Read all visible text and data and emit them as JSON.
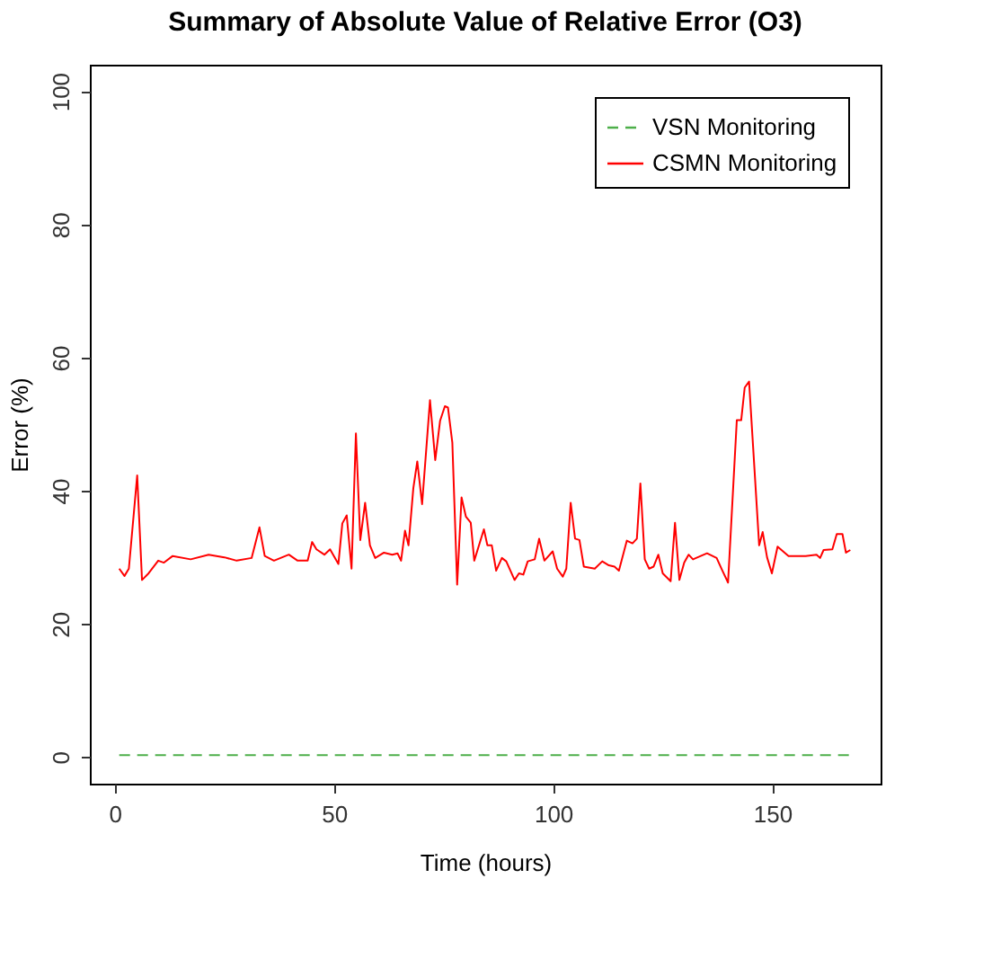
{
  "chart_data": {
    "type": "line",
    "title": "Summary of Absolute Value of Relative Error (O3)",
    "xlabel": "Time (hours)",
    "ylabel": "Error (%)",
    "xlim": [
      -5.7,
      174.7
    ],
    "xticks": [
      0,
      50,
      100,
      150
    ],
    "ylim": [
      -4,
      104
    ],
    "yticks": [
      0,
      20,
      40,
      60,
      80,
      100
    ],
    "grid": false,
    "legend": "top right",
    "marker": "none",
    "series": [
      {
        "name": "VSN Monitoring",
        "color": "#4daf4a",
        "line_style": "dashed",
        "x": [
          1,
          168
        ],
        "values": [
          0.3,
          0.3
        ]
      },
      {
        "name": "CSMN Monitoring",
        "color": "#ff0000",
        "line_style": "solid",
        "x": [
          1.0,
          2.2,
          3.2,
          5.1,
          6.2,
          7.7,
          9.9,
          11.2,
          13.2,
          17.3,
          21.4,
          25.0,
          27.8,
          31.2,
          33.0,
          34.2,
          36.3,
          39.7,
          41.7,
          44.0,
          45.0,
          46.0,
          47.8,
          49.1,
          51.0,
          51.9,
          52.9,
          54.0,
          55.0,
          56.0,
          57.1,
          58.2,
          59.4,
          61.4,
          63.3,
          64.5,
          65.3,
          66.2,
          67.0,
          68.1,
          69.0,
          70.1,
          71.9,
          73.1,
          74.2,
          75.3,
          76.0,
          77.0,
          78.1,
          79.1,
          80.1,
          81.2,
          82.0,
          84.2,
          85.0,
          86.0,
          87.0,
          88.3,
          89.3,
          91.2,
          92.2,
          93.2,
          94.2,
          95.8,
          96.8,
          98.0,
          99.9,
          100.9,
          102.2,
          103.0,
          104.0,
          105.0,
          106.0,
          107.0,
          109.5,
          111.2,
          112.7,
          114.0,
          115.0,
          116.8,
          118.1,
          119.1,
          119.9,
          120.9,
          121.9,
          122.9,
          124.0,
          125.0,
          126.8,
          127.8,
          128.8,
          129.9,
          130.9,
          131.9,
          135.1,
          137.3,
          138.6,
          139.9,
          141.9,
          142.9,
          143.7,
          144.7,
          147.0,
          147.8,
          148.8,
          149.9,
          151.2,
          153.7,
          157.6,
          160.1,
          160.9,
          161.7,
          163.7,
          164.7,
          166.0,
          166.8,
          167.8
        ],
        "values": [
          28.3,
          27.2,
          28.3,
          42.3,
          26.6,
          27.6,
          29.5,
          29.2,
          30.2,
          29.7,
          30.4,
          30.0,
          29.5,
          29.9,
          34.5,
          30.2,
          29.5,
          30.4,
          29.5,
          29.5,
          32.3,
          31.2,
          30.4,
          31.2,
          29.0,
          35.1,
          36.3,
          28.3,
          48.6,
          32.6,
          38.2,
          31.8,
          29.9,
          30.7,
          30.4,
          30.6,
          29.5,
          34.0,
          31.8,
          40.4,
          44.4,
          38.0,
          53.6,
          44.6,
          50.5,
          52.7,
          52.5,
          47.2,
          25.9,
          39.0,
          36.1,
          35.2,
          29.5,
          34.2,
          31.8,
          31.8,
          28.0,
          29.9,
          29.4,
          26.6,
          27.6,
          27.4,
          29.4,
          29.7,
          32.8,
          29.5,
          30.9,
          28.3,
          27.1,
          28.3,
          38.2,
          32.8,
          32.6,
          28.6,
          28.3,
          29.4,
          28.8,
          28.6,
          28.0,
          32.5,
          32.1,
          32.8,
          41.1,
          29.7,
          28.3,
          28.6,
          30.4,
          27.6,
          26.4,
          35.2,
          26.6,
          29.2,
          30.4,
          29.7,
          30.6,
          29.9,
          28.0,
          26.2,
          50.6,
          50.6,
          55.5,
          56.4,
          31.8,
          33.8,
          30.0,
          27.6,
          31.6,
          30.2,
          30.2,
          30.4,
          29.9,
          31.1,
          31.2,
          33.5,
          33.5,
          30.7,
          31.1
        ]
      }
    ]
  }
}
